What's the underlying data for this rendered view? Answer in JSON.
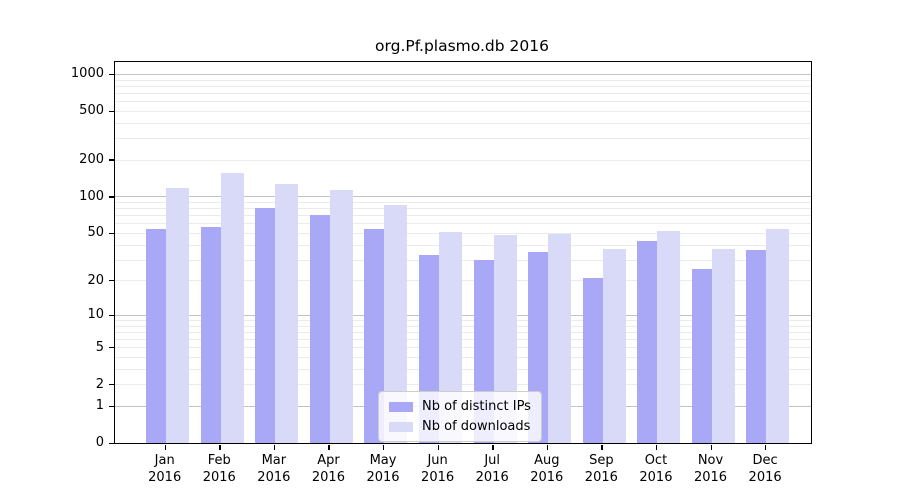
{
  "chart_data": {
    "type": "bar",
    "title": "org.Pf.plasmo.db 2016",
    "categories": [
      "Jan 2016",
      "Feb 2016",
      "Mar 2016",
      "Apr 2016",
      "May 2016",
      "Jun 2016",
      "Jul 2016",
      "Aug 2016",
      "Sep 2016",
      "Oct 2016",
      "Nov 2016",
      "Dec 2016"
    ],
    "series": [
      {
        "name": "Nb of distinct IPs",
        "color": "#a8a8f7",
        "values": [
          54,
          56,
          80,
          70,
          54,
          33,
          30,
          35,
          21,
          43,
          25,
          36
        ]
      },
      {
        "name": "Nb of downloads",
        "color": "#d9d9f8",
        "values": [
          117,
          155,
          126,
          114,
          85,
          51,
          48,
          49,
          37,
          52,
          37,
          54
        ]
      }
    ],
    "y_axis": {
      "scale": "log10(value+1)",
      "ticks": [
        1000,
        500,
        200,
        100,
        50,
        20,
        10,
        5,
        2,
        1,
        0
      ],
      "major_gridlines": [
        1,
        10,
        100,
        1000
      ],
      "minor_gridlines": [
        2,
        3,
        4,
        5,
        6,
        7,
        8,
        9,
        20,
        30,
        40,
        50,
        60,
        70,
        80,
        90,
        200,
        300,
        400,
        500,
        600,
        700,
        800,
        900
      ],
      "range": [
        0,
        1250
      ]
    },
    "xlabel": "",
    "ylabel": "",
    "grid": true,
    "legend_position": "inside-bottom-center"
  }
}
